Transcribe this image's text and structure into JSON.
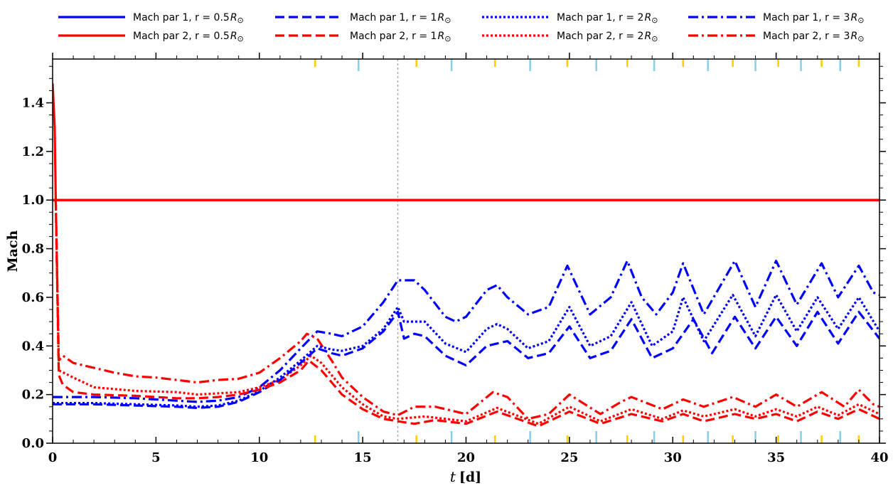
{
  "chart_data": {
    "type": "line",
    "xlabel_var": "t",
    "xlabel_unit": "[d]",
    "ylabel": "Mach",
    "xlim": [
      0,
      40
    ],
    "ylim": [
      0,
      1.58
    ],
    "x_ticks": [
      0,
      5,
      10,
      15,
      20,
      25,
      30,
      35,
      40
    ],
    "y_ticks": [
      0.0,
      0.2,
      0.4,
      0.6,
      0.8,
      1.0,
      1.2,
      1.4
    ],
    "y_tick_labels": [
      "0.0",
      "0.2",
      "0.4",
      "0.6",
      "0.8",
      "1.0",
      "1.2",
      "1.4"
    ],
    "legend_position": "top, above plot, 4 columns",
    "reference_line": {
      "y": 1.0,
      "color": "#ff0000"
    },
    "vertical_marker": {
      "x": 16.7,
      "color": "#aaaaaa",
      "style": "dotted"
    },
    "event_ticks": {
      "gold": {
        "color": "#ffcc00",
        "x": [
          12.7,
          17.6,
          21.4,
          24.9,
          27.8,
          30.5,
          32.9,
          35.1,
          37.2,
          39.0
        ]
      },
      "lightblue": {
        "color": "#87ceeb",
        "x": [
          14.8,
          19.3,
          23.1,
          26.3,
          29.1,
          31.7,
          34.0,
          36.2,
          38.1
        ]
      }
    },
    "series": [
      {
        "name": "Mach par 1, r = 0.5",
        "radius": "0.5",
        "color": "#0000ff",
        "dash": "solid",
        "points": [
          [
            0,
            1.0
          ],
          [
            40,
            1.0
          ]
        ]
      },
      {
        "name": "Mach par 2, r = 0.5",
        "radius": "0.5",
        "color": "#ff0000",
        "dash": "solid",
        "points": [
          [
            0,
            1.48
          ],
          [
            0.1,
            1.3
          ],
          [
            0.15,
            1.0
          ],
          [
            40,
            1.0
          ]
        ]
      },
      {
        "name": "Mach par 1, r = 1",
        "radius": "1",
        "color": "#0000ff",
        "dash": "dashed",
        "points": [
          [
            0,
            0.16
          ],
          [
            2,
            0.16
          ],
          [
            4,
            0.155
          ],
          [
            6,
            0.15
          ],
          [
            7,
            0.145
          ],
          [
            8,
            0.15
          ],
          [
            9,
            0.17
          ],
          [
            10,
            0.21
          ],
          [
            11,
            0.26
          ],
          [
            12,
            0.33
          ],
          [
            12.8,
            0.39
          ],
          [
            13.5,
            0.37
          ],
          [
            14,
            0.36
          ],
          [
            15,
            0.39
          ],
          [
            16,
            0.46
          ],
          [
            16.7,
            0.54
          ],
          [
            17,
            0.43
          ],
          [
            17.5,
            0.45
          ],
          [
            18,
            0.44
          ],
          [
            19,
            0.36
          ],
          [
            20,
            0.32
          ],
          [
            21,
            0.4
          ],
          [
            22,
            0.42
          ],
          [
            23,
            0.35
          ],
          [
            24,
            0.37
          ],
          [
            25,
            0.48
          ],
          [
            26,
            0.35
          ],
          [
            27,
            0.38
          ],
          [
            28,
            0.51
          ],
          [
            29,
            0.35
          ],
          [
            30,
            0.39
          ],
          [
            31,
            0.51
          ],
          [
            31.9,
            0.37
          ],
          [
            33,
            0.52
          ],
          [
            34,
            0.39
          ],
          [
            35,
            0.52
          ],
          [
            36,
            0.4
          ],
          [
            37,
            0.54
          ],
          [
            38,
            0.41
          ],
          [
            39,
            0.54
          ],
          [
            40,
            0.43
          ]
        ]
      },
      {
        "name": "Mach par 2, r = 1",
        "radius": "1",
        "color": "#ff0000",
        "dash": "dashed",
        "points": [
          [
            0.15,
            1.0
          ],
          [
            0.3,
            0.28
          ],
          [
            0.5,
            0.24
          ],
          [
            1,
            0.21
          ],
          [
            2,
            0.2
          ],
          [
            4,
            0.195
          ],
          [
            6,
            0.185
          ],
          [
            7,
            0.185
          ],
          [
            8,
            0.19
          ],
          [
            9,
            0.2
          ],
          [
            10,
            0.22
          ],
          [
            11,
            0.25
          ],
          [
            12,
            0.3
          ],
          [
            12.4,
            0.34
          ],
          [
            13,
            0.3
          ],
          [
            14,
            0.2
          ],
          [
            15,
            0.14
          ],
          [
            16,
            0.1
          ],
          [
            16.7,
            0.09
          ],
          [
            17.5,
            0.08
          ],
          [
            18.5,
            0.095
          ],
          [
            20,
            0.08
          ],
          [
            21.5,
            0.13
          ],
          [
            23.5,
            0.07
          ],
          [
            25,
            0.13
          ],
          [
            26.5,
            0.08
          ],
          [
            28,
            0.12
          ],
          [
            29.5,
            0.09
          ],
          [
            30.5,
            0.12
          ],
          [
            31.5,
            0.09
          ],
          [
            33,
            0.12
          ],
          [
            34,
            0.1
          ],
          [
            35,
            0.12
          ],
          [
            36,
            0.09
          ],
          [
            37,
            0.13
          ],
          [
            38,
            0.1
          ],
          [
            39,
            0.14
          ],
          [
            40,
            0.1
          ]
        ]
      },
      {
        "name": "Mach par 1, r = 2",
        "radius": "2",
        "color": "#0000ff",
        "dash": "dotted",
        "points": [
          [
            0,
            0.165
          ],
          [
            2,
            0.165
          ],
          [
            4,
            0.16
          ],
          [
            6,
            0.155
          ],
          [
            7,
            0.15
          ],
          [
            8,
            0.155
          ],
          [
            9,
            0.175
          ],
          [
            10,
            0.215
          ],
          [
            11,
            0.27
          ],
          [
            12,
            0.34
          ],
          [
            12.8,
            0.4
          ],
          [
            13.5,
            0.385
          ],
          [
            14,
            0.38
          ],
          [
            15,
            0.4
          ],
          [
            16,
            0.47
          ],
          [
            16.7,
            0.56
          ],
          [
            17,
            0.5
          ],
          [
            18,
            0.5
          ],
          [
            19,
            0.41
          ],
          [
            20,
            0.375
          ],
          [
            21,
            0.47
          ],
          [
            21.5,
            0.49
          ],
          [
            22,
            0.47
          ],
          [
            23,
            0.39
          ],
          [
            24,
            0.42
          ],
          [
            25,
            0.56
          ],
          [
            26,
            0.4
          ],
          [
            27,
            0.44
          ],
          [
            28,
            0.58
          ],
          [
            29,
            0.4
          ],
          [
            30,
            0.46
          ],
          [
            30.5,
            0.6
          ],
          [
            31.5,
            0.42
          ],
          [
            32.9,
            0.61
          ],
          [
            34,
            0.44
          ],
          [
            35,
            0.61
          ],
          [
            36,
            0.46
          ],
          [
            37,
            0.6
          ],
          [
            38,
            0.47
          ],
          [
            39,
            0.6
          ],
          [
            40,
            0.46
          ]
        ]
      },
      {
        "name": "Mach par 2, r = 2",
        "radius": "2",
        "color": "#ff0000",
        "dash": "dotted",
        "points": [
          [
            0.15,
            1.0
          ],
          [
            0.3,
            0.3
          ],
          [
            1,
            0.27
          ],
          [
            2,
            0.23
          ],
          [
            4,
            0.215
          ],
          [
            6,
            0.21
          ],
          [
            7,
            0.2
          ],
          [
            8,
            0.205
          ],
          [
            9,
            0.21
          ],
          [
            10,
            0.23
          ],
          [
            11,
            0.26
          ],
          [
            12,
            0.32
          ],
          [
            12.5,
            0.36
          ],
          [
            13,
            0.33
          ],
          [
            14,
            0.23
          ],
          [
            15,
            0.16
          ],
          [
            16,
            0.11
          ],
          [
            16.7,
            0.1
          ],
          [
            18,
            0.11
          ],
          [
            20,
            0.09
          ],
          [
            21.5,
            0.145
          ],
          [
            23.5,
            0.08
          ],
          [
            25,
            0.15
          ],
          [
            26.5,
            0.09
          ],
          [
            28,
            0.14
          ],
          [
            29.5,
            0.1
          ],
          [
            30.5,
            0.135
          ],
          [
            31.5,
            0.11
          ],
          [
            33,
            0.14
          ],
          [
            34,
            0.11
          ],
          [
            35,
            0.14
          ],
          [
            36,
            0.11
          ],
          [
            37,
            0.15
          ],
          [
            38,
            0.115
          ],
          [
            39,
            0.16
          ],
          [
            40,
            0.12
          ]
        ]
      },
      {
        "name": "Mach par 1, r = 3",
        "radius": "3",
        "color": "#0000ff",
        "dash": "dashdot",
        "points": [
          [
            0,
            0.19
          ],
          [
            2,
            0.19
          ],
          [
            4,
            0.185
          ],
          [
            6,
            0.175
          ],
          [
            7,
            0.17
          ],
          [
            8,
            0.175
          ],
          [
            9,
            0.19
          ],
          [
            10,
            0.23
          ],
          [
            11,
            0.3
          ],
          [
            12,
            0.39
          ],
          [
            12.8,
            0.46
          ],
          [
            13.5,
            0.45
          ],
          [
            14,
            0.44
          ],
          [
            15,
            0.48
          ],
          [
            16,
            0.58
          ],
          [
            16.7,
            0.67
          ],
          [
            17.5,
            0.67
          ],
          [
            18,
            0.63
          ],
          [
            19,
            0.52
          ],
          [
            19.5,
            0.5
          ],
          [
            20,
            0.52
          ],
          [
            21,
            0.63
          ],
          [
            21.5,
            0.65
          ],
          [
            22,
            0.6
          ],
          [
            23,
            0.53
          ],
          [
            24,
            0.56
          ],
          [
            24.9,
            0.73
          ],
          [
            26,
            0.53
          ],
          [
            27,
            0.6
          ],
          [
            27.8,
            0.75
          ],
          [
            28.5,
            0.6
          ],
          [
            29.2,
            0.53
          ],
          [
            30,
            0.62
          ],
          [
            30.5,
            0.74
          ],
          [
            31.5,
            0.53
          ],
          [
            33,
            0.75
          ],
          [
            34,
            0.56
          ],
          [
            35,
            0.75
          ],
          [
            36,
            0.57
          ],
          [
            37.2,
            0.74
          ],
          [
            38,
            0.6
          ],
          [
            39,
            0.73
          ],
          [
            39.7,
            0.62
          ],
          [
            40,
            0.61
          ]
        ]
      },
      {
        "name": "Mach par 2, r = 3",
        "radius": "3",
        "color": "#ff0000",
        "dash": "dashdot",
        "points": [
          [
            0.15,
            1.0
          ],
          [
            0.3,
            0.34
          ],
          [
            0.5,
            0.36
          ],
          [
            1,
            0.33
          ],
          [
            2,
            0.31
          ],
          [
            3,
            0.29
          ],
          [
            4,
            0.275
          ],
          [
            5,
            0.27
          ],
          [
            6,
            0.26
          ],
          [
            7,
            0.25
          ],
          [
            8,
            0.26
          ],
          [
            9,
            0.265
          ],
          [
            10,
            0.29
          ],
          [
            11,
            0.35
          ],
          [
            12,
            0.42
          ],
          [
            12.3,
            0.45
          ],
          [
            12.8,
            0.43
          ],
          [
            13.5,
            0.34
          ],
          [
            14,
            0.27
          ],
          [
            15,
            0.19
          ],
          [
            16,
            0.13
          ],
          [
            16.7,
            0.115
          ],
          [
            17.5,
            0.15
          ],
          [
            18.5,
            0.15
          ],
          [
            20,
            0.12
          ],
          [
            21.3,
            0.21
          ],
          [
            22,
            0.19
          ],
          [
            23,
            0.1
          ],
          [
            24,
            0.12
          ],
          [
            25,
            0.2
          ],
          [
            26.5,
            0.12
          ],
          [
            27.5,
            0.17
          ],
          [
            28,
            0.19
          ],
          [
            29.5,
            0.14
          ],
          [
            30.5,
            0.18
          ],
          [
            31.5,
            0.15
          ],
          [
            32.9,
            0.19
          ],
          [
            34,
            0.15
          ],
          [
            35,
            0.2
          ],
          [
            36,
            0.15
          ],
          [
            37.2,
            0.21
          ],
          [
            38.3,
            0.15
          ],
          [
            39,
            0.22
          ],
          [
            39.7,
            0.16
          ],
          [
            40,
            0.15
          ]
        ]
      }
    ]
  }
}
